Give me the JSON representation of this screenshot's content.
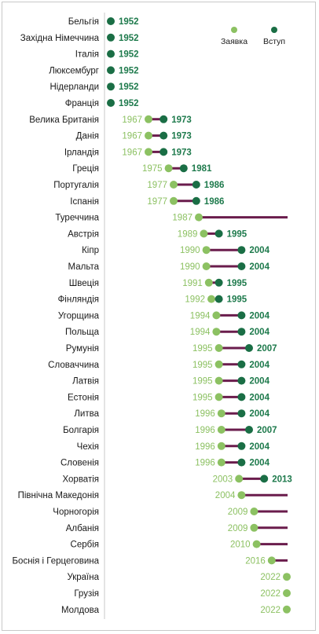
{
  "colors": {
    "application": "#8cc162",
    "accession": "#1a6e45",
    "accession_text": "#1e7a4c",
    "pending_line": "#6a1c4c",
    "axis": "#c8c8c8"
  },
  "chart_data": {
    "type": "dumbbell",
    "legend": {
      "application": "Заявка",
      "accession": "Вступ",
      "placement": "top-right"
    },
    "x_range": [
      1952,
      2022
    ],
    "grid": false,
    "rows": [
      {
        "country": "Бельгія",
        "application": null,
        "accession": 1952
      },
      {
        "country": "Західна Німеччина",
        "application": null,
        "accession": 1952
      },
      {
        "country": "Італія",
        "application": null,
        "accession": 1952
      },
      {
        "country": "Люксембург",
        "application": null,
        "accession": 1952
      },
      {
        "country": "Нідерланди",
        "application": null,
        "accession": 1952
      },
      {
        "country": "Франція",
        "application": null,
        "accession": 1952
      },
      {
        "country": "Велика Британія",
        "application": 1967,
        "accession": 1973
      },
      {
        "country": "Данія",
        "application": 1967,
        "accession": 1973
      },
      {
        "country": "Ірландія",
        "application": 1967,
        "accession": 1973
      },
      {
        "country": "Греція",
        "application": 1975,
        "accession": 1981
      },
      {
        "country": "Португалія",
        "application": 1977,
        "accession": 1986
      },
      {
        "country": "Іспанія",
        "application": 1977,
        "accession": 1986
      },
      {
        "country": "Туреччина",
        "application": 1987,
        "accession": null
      },
      {
        "country": "Австрія",
        "application": 1989,
        "accession": 1995
      },
      {
        "country": "Кіпр",
        "application": 1990,
        "accession": 2004
      },
      {
        "country": "Мальта",
        "application": 1990,
        "accession": 2004
      },
      {
        "country": "Швеція",
        "application": 1991,
        "accession": 1995
      },
      {
        "country": "Фінляндія",
        "application": 1992,
        "accession": 1995
      },
      {
        "country": "Угорщина",
        "application": 1994,
        "accession": 2004
      },
      {
        "country": "Польща",
        "application": 1994,
        "accession": 2004
      },
      {
        "country": "Румунія",
        "application": 1995,
        "accession": 2007
      },
      {
        "country": "Словаччина",
        "application": 1995,
        "accession": 2004
      },
      {
        "country": "Латвія",
        "application": 1995,
        "accession": 2004
      },
      {
        "country": "Естонія",
        "application": 1995,
        "accession": 2004
      },
      {
        "country": "Литва",
        "application": 1996,
        "accession": 2004
      },
      {
        "country": "Болгарія",
        "application": 1996,
        "accession": 2007
      },
      {
        "country": "Чехія",
        "application": 1996,
        "accession": 2004
      },
      {
        "country": "Словенія",
        "application": 1996,
        "accession": 2004
      },
      {
        "country": "Хорватія",
        "application": 2003,
        "accession": 2013
      },
      {
        "country": "Північна Македонія",
        "application": 2004,
        "accession": null
      },
      {
        "country": "Чорногорія",
        "application": 2009,
        "accession": null
      },
      {
        "country": "Албанія",
        "application": 2009,
        "accession": null
      },
      {
        "country": "Сербія",
        "application": 2010,
        "accession": null
      },
      {
        "country": "Боснія і Герцеговина",
        "application": 2016,
        "accession": null
      },
      {
        "country": "Україна",
        "application": 2022,
        "accession": null
      },
      {
        "country": "Грузія",
        "application": 2022,
        "accession": null
      },
      {
        "country": "Молдова",
        "application": 2022,
        "accession": null
      }
    ]
  }
}
